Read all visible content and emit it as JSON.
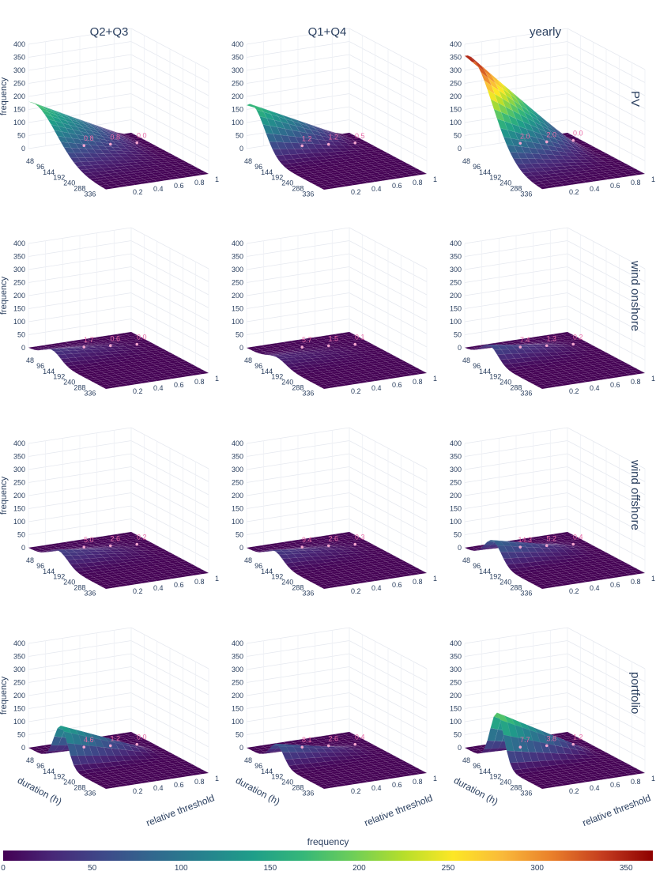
{
  "column_titles": [
    "Q2+Q3",
    "Q1+Q4",
    "yearly"
  ],
  "row_titles": [
    "PV",
    "wind onshore",
    "wind offshore",
    "portfolio"
  ],
  "colorbar": {
    "title": "frequency",
    "ticks": [
      "0",
      "50",
      "100",
      "150",
      "200",
      "250",
      "300",
      "350"
    ],
    "tick_values": [
      0,
      50,
      100,
      150,
      200,
      250,
      300,
      350
    ],
    "max": 365,
    "colors": [
      "#440154",
      "#482878",
      "#3e4989",
      "#31688e",
      "#26828e",
      "#1f9e89",
      "#35b779",
      "#6ece58",
      "#b5de2b",
      "#fde725",
      "#f9b93a",
      "#e97e2a",
      "#c43c1f",
      "#8e0000"
    ]
  },
  "axes": {
    "z_title": "frequency",
    "z_ticks": [
      "0",
      "50",
      "100",
      "150",
      "200",
      "250",
      "300",
      "350",
      "400"
    ],
    "x_title": "duration (h)",
    "x_ticks": [
      "48",
      "96",
      "144",
      "192",
      "240",
      "288",
      "336"
    ],
    "y_title": "relative threshold",
    "y_ticks": [
      "0.2",
      "0.4",
      "0.6",
      "0.8",
      "1"
    ]
  },
  "chart_data": {
    "type": "surface",
    "zlim": [
      0,
      400
    ],
    "panels": [
      {
        "row": "PV",
        "col": "Q2+Q3",
        "peak": 185,
        "peak_duration": 24,
        "spread": 150,
        "labels": [
          "0.8",
          "0.8",
          "0.0"
        ]
      },
      {
        "row": "PV",
        "col": "Q1+Q4",
        "peak": 180,
        "peak_duration": 24,
        "spread": 85,
        "labels": [
          "1.2",
          "1.2",
          "0.5"
        ]
      },
      {
        "row": "PV",
        "col": "yearly",
        "peak": 365,
        "peak_duration": 24,
        "spread": 150,
        "labels": [
          "2.0",
          "2.0",
          "0.0"
        ]
      },
      {
        "row": "wind onshore",
        "col": "Q2+Q3",
        "peak": 40,
        "peak_duration": 110,
        "spread": 55,
        "labels": [
          "1.7",
          "0.6",
          "0.0"
        ]
      },
      {
        "row": "wind onshore",
        "col": "Q1+Q4",
        "peak": 25,
        "peak_duration": 140,
        "spread": 60,
        "labels": [
          "5.7",
          "1.5",
          "0.1"
        ]
      },
      {
        "row": "wind onshore",
        "col": "yearly",
        "peak": 60,
        "peak_duration": 115,
        "spread": 55,
        "labels": [
          "7.4",
          "1.3",
          "0.2"
        ]
      },
      {
        "row": "wind offshore",
        "col": "Q2+Q3",
        "peak": 50,
        "peak_duration": 140,
        "spread": 60,
        "labels": [
          "5.0",
          "2.6",
          "0.2"
        ]
      },
      {
        "row": "wind offshore",
        "col": "Q1+Q4",
        "peak": 45,
        "peak_duration": 130,
        "spread": 55,
        "labels": [
          "9.4",
          "2.6",
          "0.3"
        ]
      },
      {
        "row": "wind offshore",
        "col": "yearly",
        "peak": 85,
        "peak_duration": 130,
        "spread": 55,
        "labels": [
          "14.3",
          "5.2",
          "0.4"
        ]
      },
      {
        "row": "portfolio",
        "col": "Q2+Q3",
        "peak": 150,
        "peak_duration": 150,
        "spread": 45,
        "labels": [
          "4.6",
          "1.2",
          "0.0"
        ]
      },
      {
        "row": "portfolio",
        "col": "Q1+Q4",
        "peak": 75,
        "peak_duration": 140,
        "spread": 45,
        "labels": [
          "8.1",
          "2.6",
          "0.4"
        ]
      },
      {
        "row": "portfolio",
        "col": "yearly",
        "peak": 200,
        "peak_duration": 150,
        "spread": 45,
        "labels": [
          "7.7",
          "3.8",
          "1.2"
        ]
      }
    ]
  }
}
